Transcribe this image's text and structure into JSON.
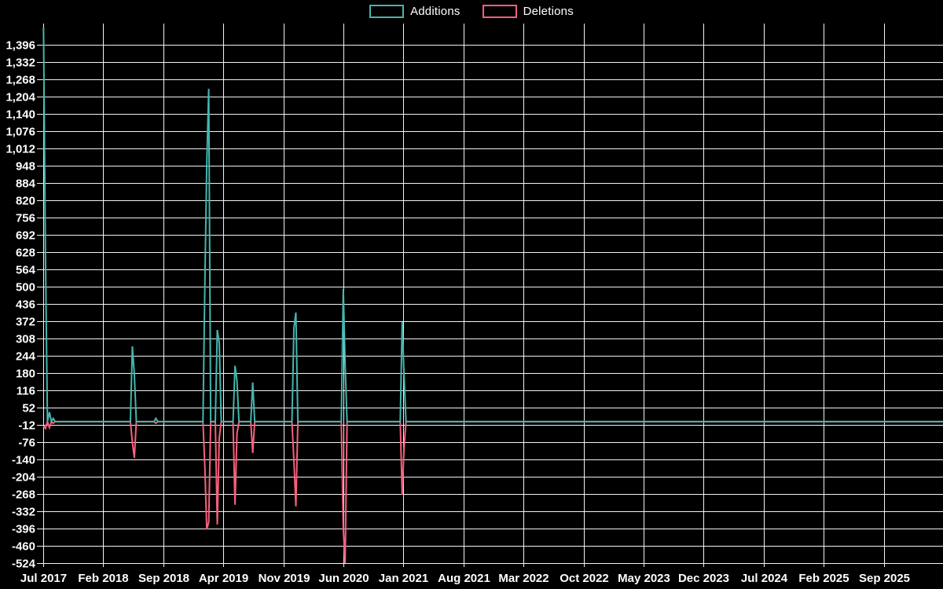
{
  "legend": {
    "items": [
      {
        "id": "additions",
        "label": "Additions",
        "color": "#45b5ae"
      },
      {
        "id": "deletions",
        "label": "Deletions",
        "color": "#f8607e"
      }
    ]
  },
  "chart_data": {
    "type": "line",
    "title": "",
    "legend": [
      "Additions",
      "Deletions"
    ],
    "legend_position": "top-center",
    "grid": true,
    "background_color": "#000000",
    "grid_color": "#f2f2f2",
    "text_color": "#ffffff",
    "ylim": [
      -524,
      1460
    ],
    "y_tick_step": 64,
    "y_ticks": [
      1396,
      1332,
      1268,
      1204,
      1140,
      1076,
      1012,
      948,
      884,
      820,
      756,
      692,
      628,
      564,
      500,
      436,
      372,
      308,
      244,
      180,
      116,
      52,
      -12,
      -76,
      -140,
      -204,
      -268,
      -332,
      -396,
      -460,
      -524
    ],
    "x_ticks": [
      "Jul 2017",
      "Feb 2018",
      "Sep 2018",
      "Apr 2019",
      "Nov 2019",
      "Jun 2020",
      "Jan 2021",
      "Aug 2021",
      "Mar 2022",
      "Oct 2022",
      "May 2023",
      "Dec 2023",
      "Jul 2024",
      "Feb 2025",
      "Sep 2025"
    ],
    "x_tick_interval_months": 7,
    "x_start_week": "2017-07-02",
    "x_end_week": "2026-03-29",
    "baseline_value": 0,
    "series": [
      {
        "name": "Additions",
        "key": "additions",
        "color": "#45b5ae"
      },
      {
        "name": "Deletions",
        "key": "deletions",
        "color": "#f8607e"
      }
    ],
    "spike_weeks": [
      {
        "week": "2017-07-02",
        "additions": 1460,
        "deletions": -15
      },
      {
        "week": "2017-07-09",
        "additions": 610,
        "deletions": -25
      },
      {
        "week": "2017-07-23",
        "additions": 35,
        "deletions": -22
      },
      {
        "week": "2017-08-06",
        "additions": 12,
        "deletions": -6
      },
      {
        "week": "2018-05-13",
        "additions": 279,
        "deletions": -76
      },
      {
        "week": "2018-05-20",
        "additions": 175,
        "deletions": -134
      },
      {
        "week": "2018-08-05",
        "additions": 12,
        "deletions": -6
      },
      {
        "week": "2019-01-27",
        "additions": 527,
        "deletions": -175
      },
      {
        "week": "2019-02-03",
        "additions": 950,
        "deletions": -399
      },
      {
        "week": "2019-02-10",
        "additions": 1233,
        "deletions": -372
      },
      {
        "week": "2019-03-10",
        "additions": 340,
        "deletions": -381
      },
      {
        "week": "2019-03-17",
        "additions": 291,
        "deletions": -60
      },
      {
        "week": "2019-05-12",
        "additions": 207,
        "deletions": -308
      },
      {
        "week": "2019-05-19",
        "additions": 151,
        "deletions": -45
      },
      {
        "week": "2019-07-14",
        "additions": 145,
        "deletions": -116
      },
      {
        "week": "2019-12-08",
        "additions": 346,
        "deletions": -145
      },
      {
        "week": "2019-12-15",
        "additions": 404,
        "deletions": -314
      },
      {
        "week": "2020-05-31",
        "additions": 492,
        "deletions": -395
      },
      {
        "week": "2020-06-07",
        "additions": 215,
        "deletions": -524
      },
      {
        "week": "2020-12-27",
        "additions": 369,
        "deletions": -271
      },
      {
        "week": "2021-01-03",
        "additions": 175,
        "deletions": -100
      }
    ]
  }
}
